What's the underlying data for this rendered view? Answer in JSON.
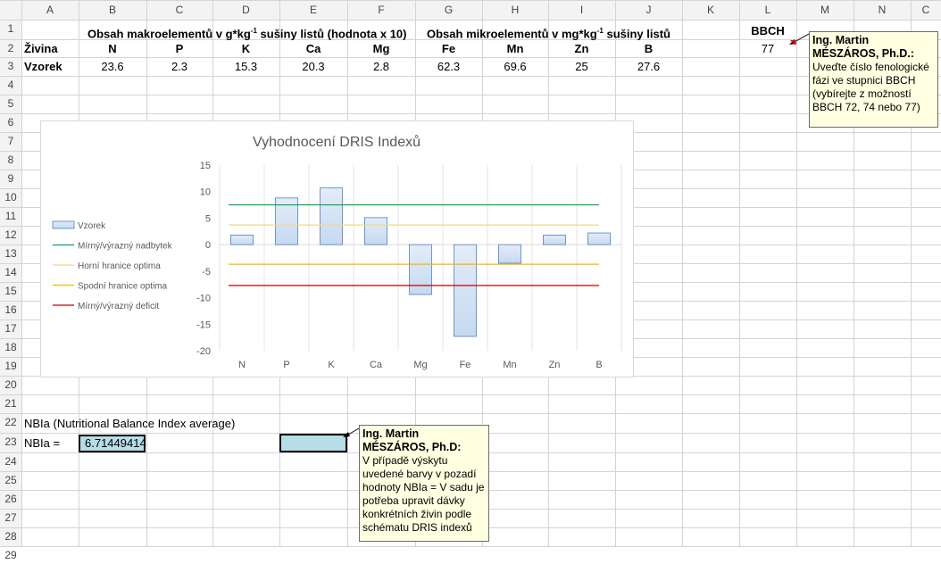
{
  "columns": [
    "A",
    "B",
    "C",
    "D",
    "E",
    "F",
    "G",
    "H",
    "I",
    "J",
    "K",
    "L",
    "M",
    "N",
    "C"
  ],
  "rows": [
    "1",
    "2",
    "3",
    "4",
    "5",
    "6",
    "7",
    "8",
    "9",
    "10",
    "11",
    "12",
    "13",
    "14",
    "15",
    "16",
    "17",
    "18",
    "19",
    "20",
    "21",
    "22",
    "23",
    "24",
    "25",
    "26",
    "27",
    "28",
    "29"
  ],
  "sheet": {
    "row1": {
      "macro_header": "Obsah makroelementů v g*kg",
      "macro_sup": "-1",
      "macro_tail": " sušiny listů (hodnota x 10)",
      "micro_header": "Obsah mikroelementů v mg*kg",
      "micro_sup": "-1",
      "micro_tail": " sušiny listů",
      "bbch_label": "BBCH"
    },
    "row2": {
      "label": "Živina",
      "nutrients": [
        "N",
        "P",
        "K",
        "Ca",
        "Mg",
        "Fe",
        "Mn",
        "Zn",
        "B"
      ],
      "bbch_value": "77"
    },
    "row3": {
      "label": "Vzorek",
      "values": [
        "23.6",
        "2.3",
        "15.3",
        "20.3",
        "2.8",
        "62.3",
        "69.6",
        "25",
        "27.6"
      ]
    },
    "row23": {
      "label": "NBIa (Nutritional Balance Index average)"
    },
    "row24": {
      "label": "NBIa =",
      "value": "6.71449414"
    }
  },
  "comments": {
    "bbch": {
      "author": "Ing. Martin MÉSZÁROS, Ph.D.:",
      "text": "Uveďte číslo fenologické fázi ve stupnici BBCH (vybírejte z možností BBCH 72, 74 nebo 77)"
    },
    "nbia": {
      "author": "Ing. Martin MÉSZÁROS, Ph.D:",
      "text": "V případě výskytu uvedené barvy v pozadí hodnoty NBIa = V sadu je potřeba upravit dávky konkrétních živin podle schématu DRIS indexů"
    }
  },
  "colors": {
    "nbia_cell_fill": "#b7dde8",
    "bar_fill": "#c6d9f1",
    "bar_stroke": "#4f81bd",
    "green_line": "#00a651",
    "light_line": "#f2d88a",
    "orange_line": "#f7b500",
    "red_line": "#c00000"
  },
  "chart_data": {
    "type": "bar",
    "title": "Vyhodnocení DRIS Indexů",
    "categories": [
      "N",
      "P",
      "K",
      "Ca",
      "Mg",
      "Fe",
      "Mn",
      "Zn",
      "B"
    ],
    "series": [
      {
        "name": "Vzorek",
        "values": [
          1.8,
          8.8,
          10.7,
          5.1,
          -9.4,
          -17.3,
          -3.5,
          1.8,
          2.2
        ]
      }
    ],
    "reference_lines": [
      {
        "name": "Mírný/výrazný nadbytek",
        "value": 7.5
      },
      {
        "name": "Horní hranice optima",
        "value": 3.7
      },
      {
        "name": "Spodní hranice optima",
        "value": -3.7
      },
      {
        "name": "Mírný/výrazný deficit",
        "value": -7.7
      }
    ],
    "ylim": [
      -20,
      15
    ],
    "yticks": [
      "15",
      "10",
      "5",
      "0",
      "-5",
      "-10",
      "-15",
      "-20"
    ],
    "grid": true,
    "legend": "left"
  }
}
